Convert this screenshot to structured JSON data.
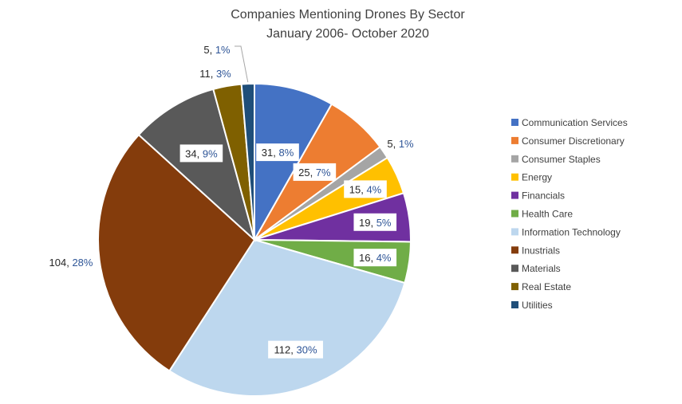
{
  "chart_data": {
    "type": "pie",
    "title": "Companies Mentioning Drones By Sector",
    "subtitle": "January 2006- October 2020",
    "legend_position": "right",
    "slices": [
      {
        "label": "Communication Services",
        "value": 31,
        "percent": "8%",
        "color": "#4472C4"
      },
      {
        "label": "Consumer Discretionary",
        "value": 25,
        "percent": "7%",
        "color": "#ED7D31"
      },
      {
        "label": "Consumer Staples",
        "value": 5,
        "percent": "1%",
        "color": "#A5A5A5"
      },
      {
        "label": "Energy",
        "value": 15,
        "percent": "4%",
        "color": "#FFC000"
      },
      {
        "label": "Financials",
        "value": 19,
        "percent": "5%",
        "color": "#7030A0"
      },
      {
        "label": "Health Care",
        "value": 16,
        "percent": "4%",
        "color": "#70AD47"
      },
      {
        "label": "Information Technology",
        "value": 112,
        "percent": "30%",
        "color": "#BDD7EE"
      },
      {
        "label": "Inustrials",
        "value": 104,
        "percent": "28%",
        "color": "#843C0C"
      },
      {
        "label": "Materials",
        "value": 34,
        "percent": "9%",
        "color": "#595959"
      },
      {
        "label": "Real Estate",
        "value": 11,
        "percent": "3%",
        "color": "#7F6000"
      },
      {
        "label": "Utilities",
        "value": 5,
        "percent": "1%",
        "color": "#1F4E79"
      }
    ],
    "label_colors": {
      "value": "#262626",
      "percent": "#2E5597"
    }
  }
}
